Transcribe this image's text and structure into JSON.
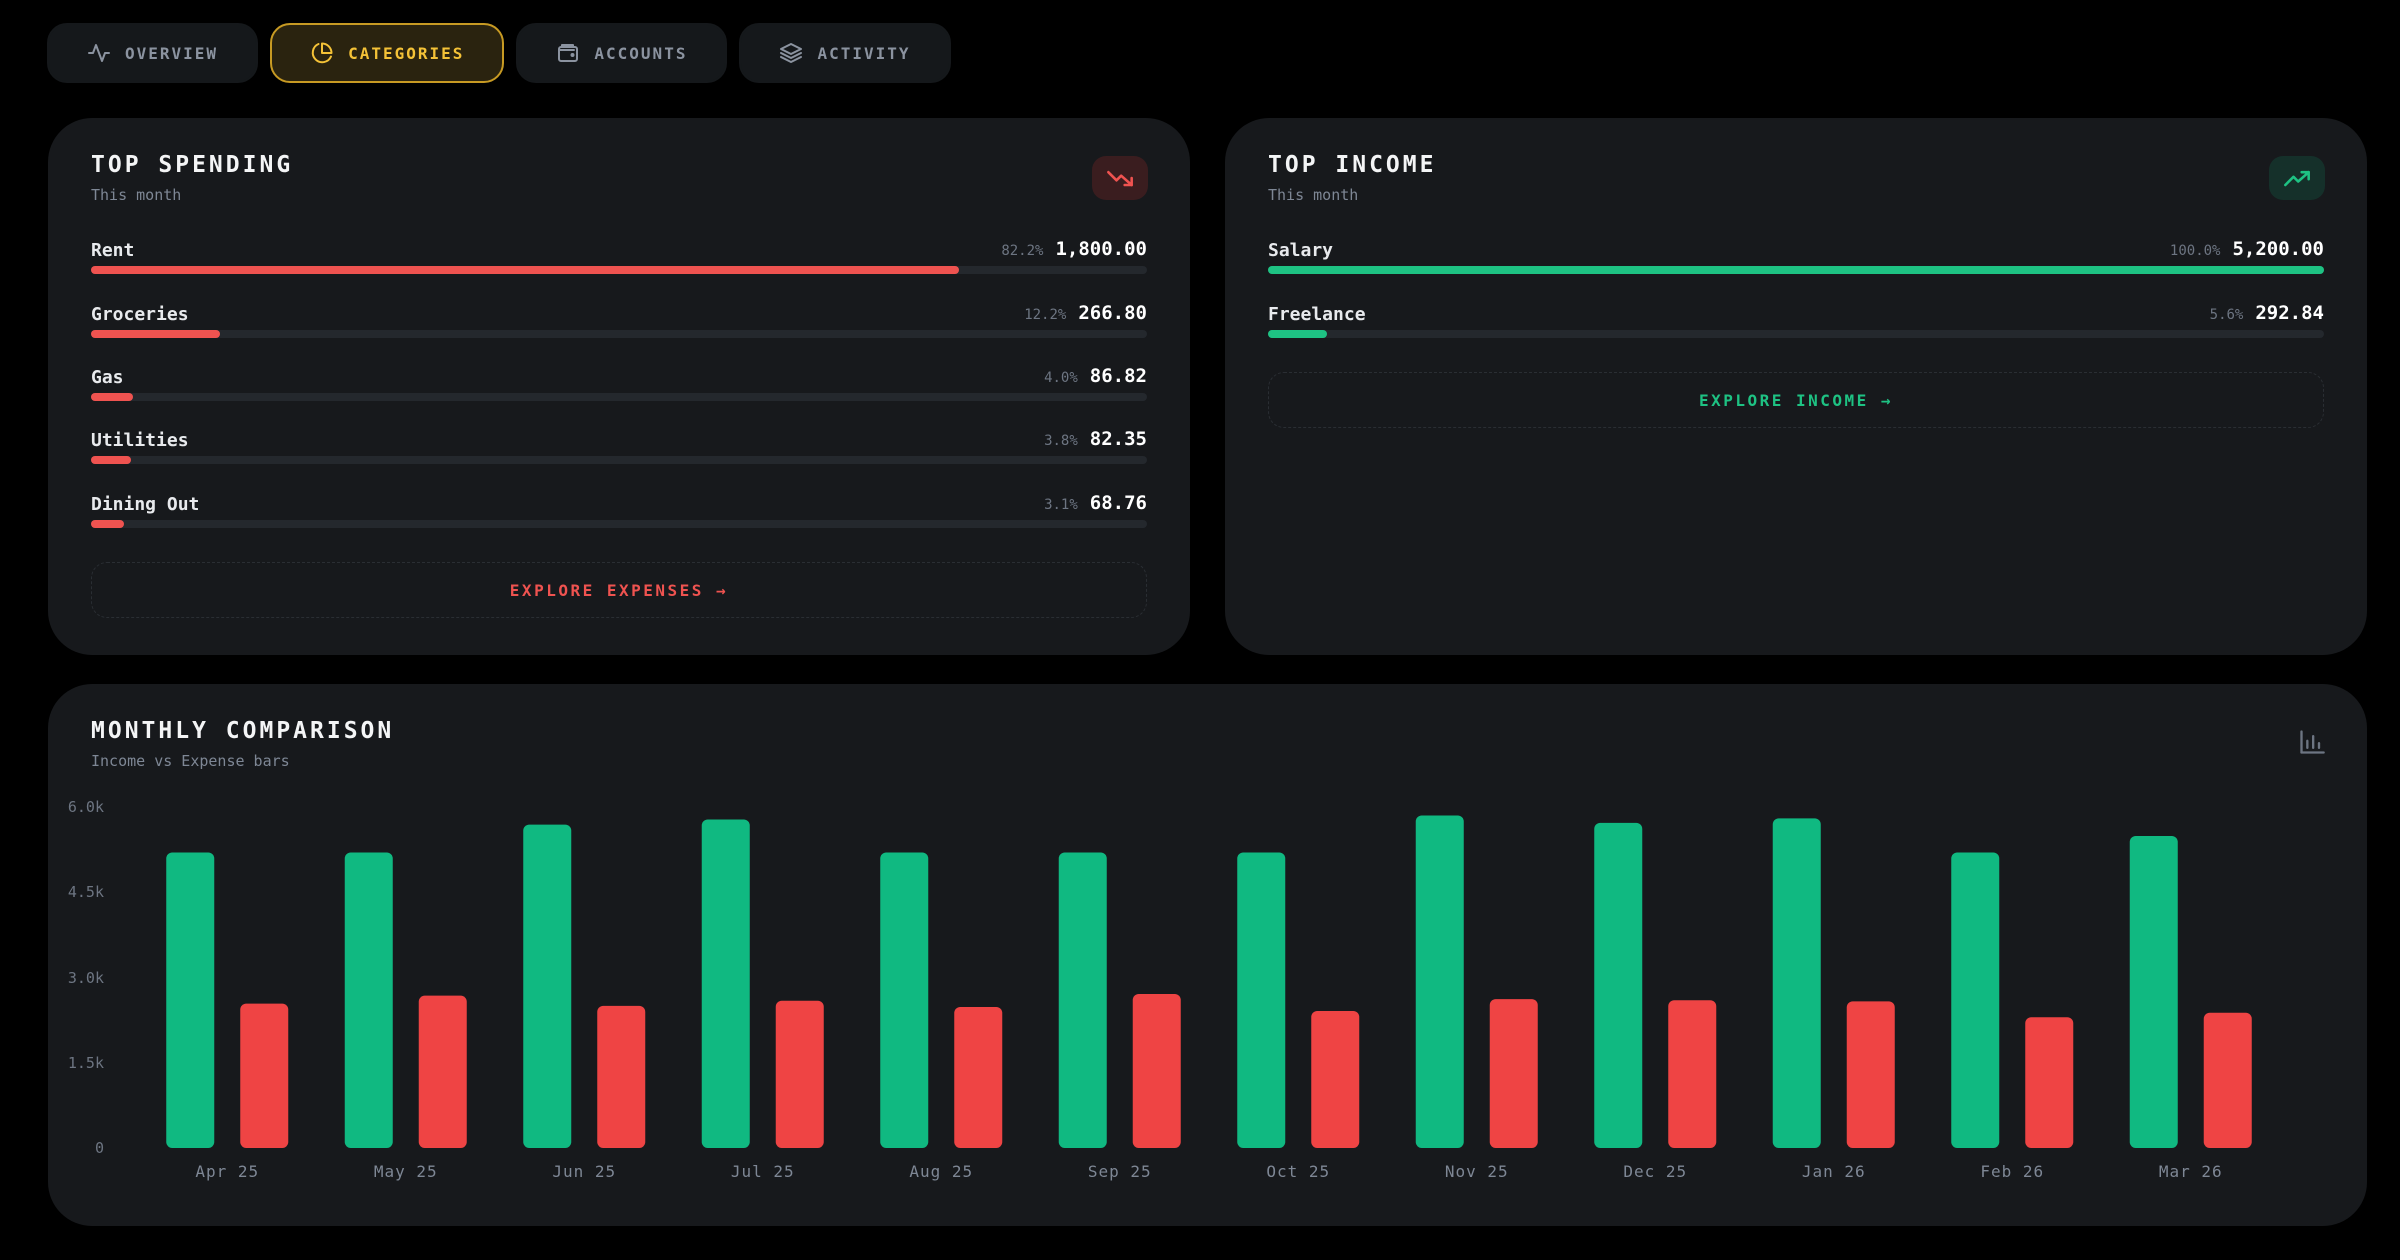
{
  "tabs": [
    {
      "label": "OVERVIEW",
      "icon": "activity-icon",
      "active": false
    },
    {
      "label": "CATEGORIES",
      "icon": "pie-chart-icon",
      "active": true
    },
    {
      "label": "ACCOUNTS",
      "icon": "wallet-icon",
      "active": false
    },
    {
      "label": "ACTIVITY",
      "icon": "layers-icon",
      "active": false
    }
  ],
  "spending": {
    "title": "TOP SPENDING",
    "subtitle": "This month",
    "icon": "trending-down-icon",
    "accent": "#ef5350",
    "items": [
      {
        "label": "Rent",
        "pct": "82.2%",
        "amount": "1,800.00",
        "share": 0.822
      },
      {
        "label": "Groceries",
        "pct": "12.2%",
        "amount": "266.80",
        "share": 0.122
      },
      {
        "label": "Gas",
        "pct": "4.0%",
        "amount": "86.82",
        "share": 0.04
      },
      {
        "label": "Utilities",
        "pct": "3.8%",
        "amount": "82.35",
        "share": 0.038
      },
      {
        "label": "Dining Out",
        "pct": "3.1%",
        "amount": "68.76",
        "share": 0.031
      }
    ],
    "explore_label": "EXPLORE EXPENSES →"
  },
  "income": {
    "title": "TOP INCOME",
    "subtitle": "This month",
    "icon": "trending-up-icon",
    "accent": "#1ec283",
    "items": [
      {
        "label": "Salary",
        "pct": "100.0%",
        "amount": "5,200.00",
        "share": 1.0
      },
      {
        "label": "Freelance",
        "pct": "5.6%",
        "amount": "292.84",
        "share": 0.056
      }
    ],
    "explore_label": "EXPLORE INCOME →"
  },
  "comparison": {
    "title": "MONTHLY COMPARISON",
    "subtitle": "Income vs Expense bars",
    "icon": "bar-chart-icon"
  },
  "colors": {
    "income": "#10b981",
    "expense": "#ef4444",
    "active_tab": "#f4c237"
  },
  "chart_data": {
    "type": "bar",
    "categories": [
      "Apr 25",
      "May 25",
      "Jun 25",
      "Jul 25",
      "Aug 25",
      "Sep 25",
      "Oct 25",
      "Nov 25",
      "Dec 25",
      "Jan 26",
      "Feb 26",
      "Mar 26"
    ],
    "series": [
      {
        "values": [
          5200,
          5200,
          5690,
          5780,
          5200,
          5200,
          5200,
          5850,
          5720,
          5800,
          5200,
          5490
        ]
      },
      {
        "values": [
          2540,
          2680,
          2500,
          2590,
          2480,
          2710,
          2410,
          2620,
          2600,
          2580,
          2300,
          2380
        ]
      }
    ],
    "yticks": [
      "0",
      "1.5k",
      "3.0k",
      "4.5k",
      "6.0k"
    ],
    "ylim": [
      0,
      6000
    ],
    "grid": false,
    "legend": "none"
  }
}
